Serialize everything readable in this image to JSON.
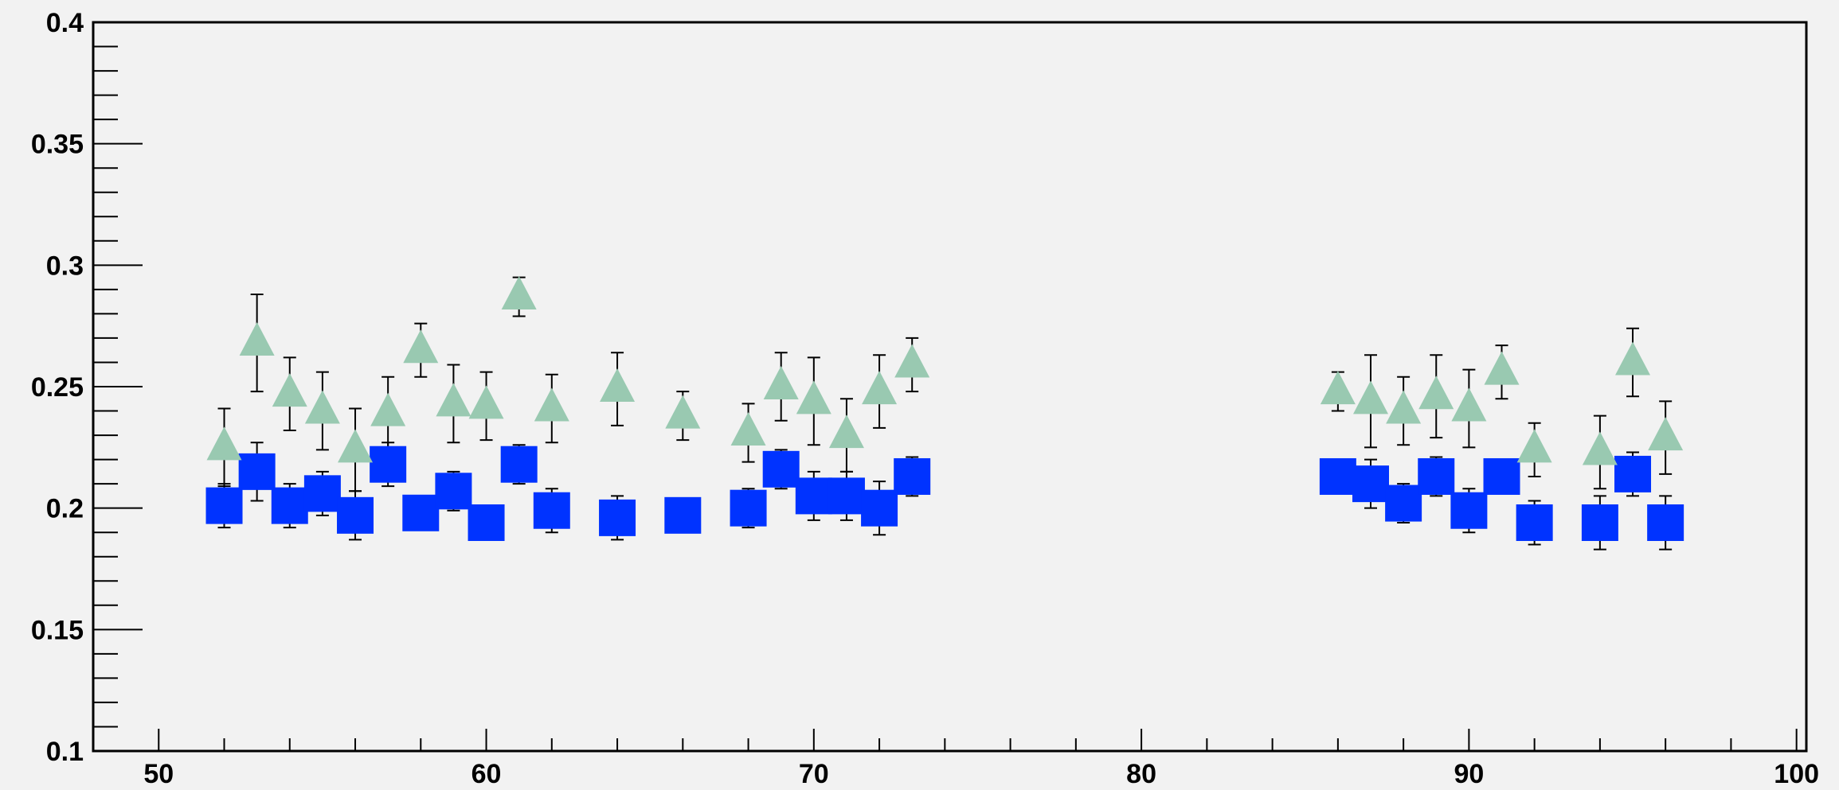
{
  "colors": {
    "background": "#f2f2f2",
    "frame": "#000000",
    "series_square": "#0033ff",
    "series_triangle": "#99c9b1",
    "error_bar": "#000000"
  },
  "chart_data": {
    "type": "scatter",
    "title": "",
    "xlabel": "",
    "ylabel": "",
    "xlim": [
      48,
      100.3
    ],
    "ylim": [
      0.1,
      0.4
    ],
    "grid": false,
    "legend": "none",
    "x_ticks": [
      50,
      60,
      70,
      80,
      90,
      100
    ],
    "x_tick_labels": [
      "50",
      "60",
      "70",
      "80",
      "90",
      "100"
    ],
    "y_ticks": [
      0.1,
      0.15,
      0.2,
      0.25,
      0.3,
      0.35,
      0.4
    ],
    "y_tick_labels": [
      "0.1",
      "0.15",
      "0.2",
      "0.25",
      "0.3",
      "0.35",
      "0.4"
    ],
    "series": [
      {
        "marker": "square",
        "color": "#0033ff",
        "points": [
          {
            "x": 52,
            "y": 0.201,
            "err_lo": 0.009,
            "err_hi": 0.009
          },
          {
            "x": 53,
            "y": 0.215,
            "err_lo": 0.012,
            "err_hi": 0.012
          },
          {
            "x": 54,
            "y": 0.201,
            "err_lo": 0.009,
            "err_hi": 0.009
          },
          {
            "x": 55,
            "y": 0.206,
            "err_lo": 0.009,
            "err_hi": 0.009
          },
          {
            "x": 56,
            "y": 0.197,
            "err_lo": 0.01,
            "err_hi": 0.01
          },
          {
            "x": 57,
            "y": 0.218,
            "err_lo": 0.009,
            "err_hi": 0.009
          },
          {
            "x": 58,
            "y": 0.198,
            "err_lo": 0.007,
            "err_hi": 0.007
          },
          {
            "x": 59,
            "y": 0.207,
            "err_lo": 0.008,
            "err_hi": 0.008
          },
          {
            "x": 60,
            "y": 0.194,
            "err_lo": 0.007,
            "err_hi": 0.007
          },
          {
            "x": 61,
            "y": 0.218,
            "err_lo": 0.008,
            "err_hi": 0.008
          },
          {
            "x": 62,
            "y": 0.199,
            "err_lo": 0.009,
            "err_hi": 0.009
          },
          {
            "x": 64,
            "y": 0.196,
            "err_lo": 0.009,
            "err_hi": 0.009
          },
          {
            "x": 66,
            "y": 0.197,
            "err_lo": 0.007,
            "err_hi": 0.007
          },
          {
            "x": 68,
            "y": 0.2,
            "err_lo": 0.008,
            "err_hi": 0.008
          },
          {
            "x": 69,
            "y": 0.216,
            "err_lo": 0.008,
            "err_hi": 0.008
          },
          {
            "x": 70,
            "y": 0.205,
            "err_lo": 0.01,
            "err_hi": 0.01
          },
          {
            "x": 71,
            "y": 0.205,
            "err_lo": 0.01,
            "err_hi": 0.01
          },
          {
            "x": 72,
            "y": 0.2,
            "err_lo": 0.011,
            "err_hi": 0.011
          },
          {
            "x": 73,
            "y": 0.213,
            "err_lo": 0.008,
            "err_hi": 0.008
          },
          {
            "x": 86,
            "y": 0.213,
            "err_lo": 0.0,
            "err_hi": 0.0
          },
          {
            "x": 87,
            "y": 0.21,
            "err_lo": 0.01,
            "err_hi": 0.01
          },
          {
            "x": 88,
            "y": 0.202,
            "err_lo": 0.008,
            "err_hi": 0.008
          },
          {
            "x": 89,
            "y": 0.213,
            "err_lo": 0.008,
            "err_hi": 0.008
          },
          {
            "x": 90,
            "y": 0.199,
            "err_lo": 0.009,
            "err_hi": 0.009
          },
          {
            "x": 91,
            "y": 0.213,
            "err_lo": 0.0,
            "err_hi": 0.0
          },
          {
            "x": 92,
            "y": 0.194,
            "err_lo": 0.009,
            "err_hi": 0.009
          },
          {
            "x": 94,
            "y": 0.194,
            "err_lo": 0.011,
            "err_hi": 0.011
          },
          {
            "x": 95,
            "y": 0.214,
            "err_lo": 0.009,
            "err_hi": 0.009
          },
          {
            "x": 96,
            "y": 0.194,
            "err_lo": 0.011,
            "err_hi": 0.011
          }
        ]
      },
      {
        "marker": "triangle",
        "color": "#99c9b1",
        "points": [
          {
            "x": 52,
            "y": 0.225,
            "err_lo": 0.016,
            "err_hi": 0.016
          },
          {
            "x": 53,
            "y": 0.268,
            "err_lo": 0.02,
            "err_hi": 0.02
          },
          {
            "x": 54,
            "y": 0.247,
            "err_lo": 0.015,
            "err_hi": 0.015
          },
          {
            "x": 55,
            "y": 0.24,
            "err_lo": 0.016,
            "err_hi": 0.016
          },
          {
            "x": 56,
            "y": 0.224,
            "err_lo": 0.017,
            "err_hi": 0.017
          },
          {
            "x": 57,
            "y": 0.239,
            "err_lo": 0.015,
            "err_hi": 0.015
          },
          {
            "x": 58,
            "y": 0.265,
            "err_lo": 0.011,
            "err_hi": 0.011
          },
          {
            "x": 59,
            "y": 0.243,
            "err_lo": 0.016,
            "err_hi": 0.016
          },
          {
            "x": 60,
            "y": 0.242,
            "err_lo": 0.014,
            "err_hi": 0.014
          },
          {
            "x": 61,
            "y": 0.287,
            "err_lo": 0.008,
            "err_hi": 0.008
          },
          {
            "x": 62,
            "y": 0.241,
            "err_lo": 0.014,
            "err_hi": 0.014
          },
          {
            "x": 64,
            "y": 0.249,
            "err_lo": 0.015,
            "err_hi": 0.015
          },
          {
            "x": 66,
            "y": 0.238,
            "err_lo": 0.01,
            "err_hi": 0.01
          },
          {
            "x": 68,
            "y": 0.231,
            "err_lo": 0.012,
            "err_hi": 0.012
          },
          {
            "x": 69,
            "y": 0.25,
            "err_lo": 0.014,
            "err_hi": 0.014
          },
          {
            "x": 70,
            "y": 0.244,
            "err_lo": 0.018,
            "err_hi": 0.018
          },
          {
            "x": 71,
            "y": 0.23,
            "err_lo": 0.015,
            "err_hi": 0.015
          },
          {
            "x": 72,
            "y": 0.248,
            "err_lo": 0.015,
            "err_hi": 0.015
          },
          {
            "x": 73,
            "y": 0.259,
            "err_lo": 0.011,
            "err_hi": 0.011
          },
          {
            "x": 86,
            "y": 0.248,
            "err_lo": 0.008,
            "err_hi": 0.008
          },
          {
            "x": 87,
            "y": 0.244,
            "err_lo": 0.019,
            "err_hi": 0.019
          },
          {
            "x": 88,
            "y": 0.24,
            "err_lo": 0.014,
            "err_hi": 0.014
          },
          {
            "x": 89,
            "y": 0.246,
            "err_lo": 0.017,
            "err_hi": 0.017
          },
          {
            "x": 90,
            "y": 0.241,
            "err_lo": 0.016,
            "err_hi": 0.016
          },
          {
            "x": 91,
            "y": 0.256,
            "err_lo": 0.011,
            "err_hi": 0.011
          },
          {
            "x": 92,
            "y": 0.224,
            "err_lo": 0.011,
            "err_hi": 0.011
          },
          {
            "x": 94,
            "y": 0.223,
            "err_lo": 0.015,
            "err_hi": 0.015
          },
          {
            "x": 95,
            "y": 0.26,
            "err_lo": 0.014,
            "err_hi": 0.014
          },
          {
            "x": 96,
            "y": 0.229,
            "err_lo": 0.015,
            "err_hi": 0.015
          }
        ]
      }
    ]
  }
}
